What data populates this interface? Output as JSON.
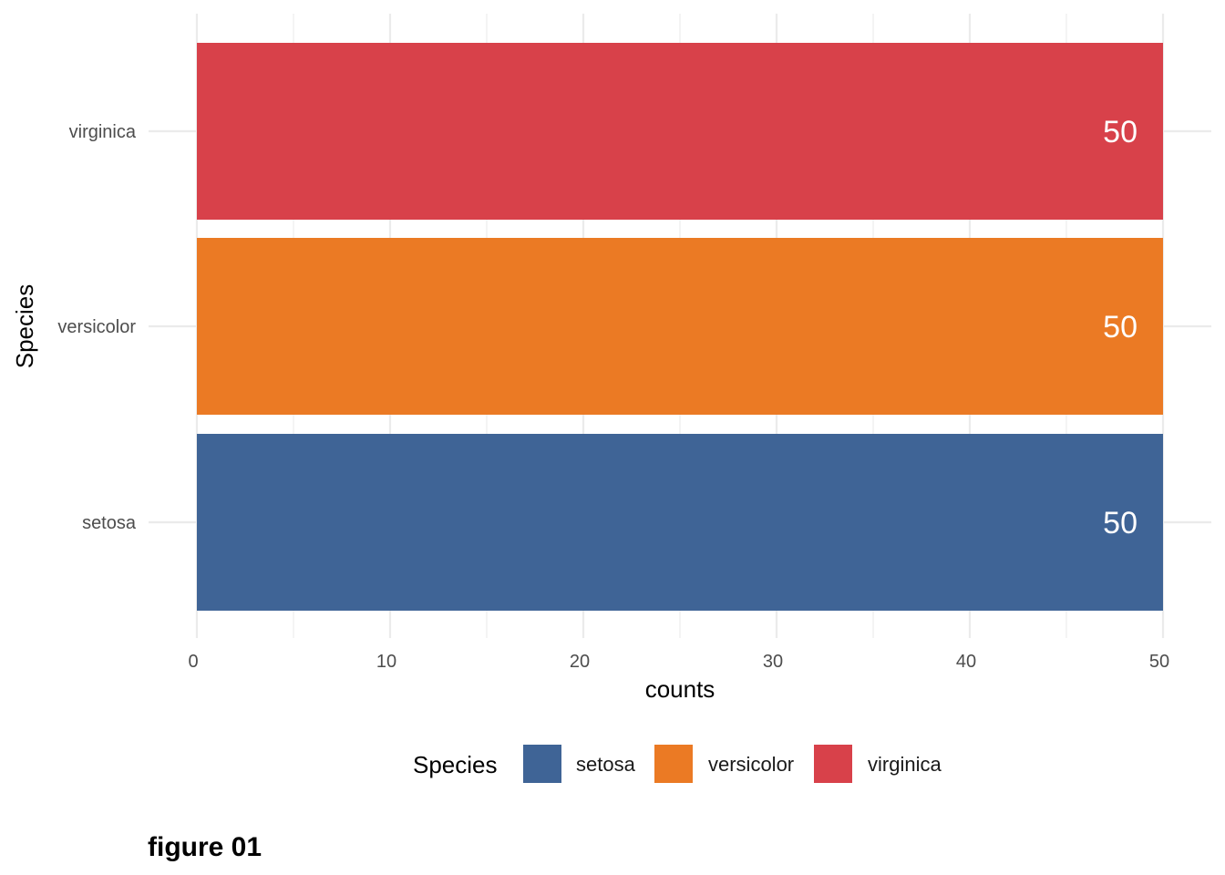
{
  "chart_data": {
    "type": "bar",
    "orientation": "horizontal",
    "categories": [
      "setosa",
      "versicolor",
      "virginica"
    ],
    "values": [
      50,
      50,
      50
    ],
    "data_labels": [
      "50",
      "50",
      "50"
    ],
    "colors": [
      "#3F6496",
      "#EB7A24",
      "#D8414A"
    ],
    "xlabel": "counts",
    "ylabel": "Species",
    "xlim": [
      0,
      50
    ],
    "xticks": [
      0,
      10,
      20,
      30,
      40,
      50
    ],
    "xtick_labels": [
      "0",
      "10",
      "20",
      "30",
      "40",
      "50"
    ],
    "grid": true,
    "legend": {
      "title": "Species",
      "position": "bottom",
      "entries": [
        "setosa",
        "versicolor",
        "virginica"
      ]
    }
  },
  "caption": "figure 01",
  "colors": {
    "grid": "#EBEBEB",
    "tick_text": "#4D4D4D",
    "background": "#FFFFFF"
  }
}
